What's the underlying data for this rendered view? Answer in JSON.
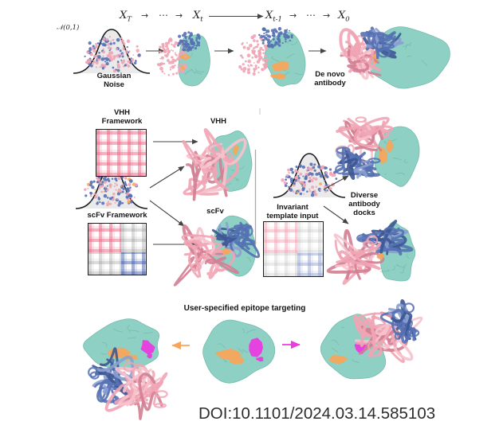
{
  "colors": {
    "teal": "#8ed0c4",
    "teal_edge": "#74bcae",
    "teal_texture": "#69b0a2",
    "pink": "#f0a4b4",
    "pink_dark": "#d27e92",
    "pink_light": "#f7c2cd",
    "blue": "#5571b4",
    "blue_dark": "#3d5694",
    "blue_light": "#8ba0d0",
    "orange": "#f7a55c",
    "magenta": "#e93be0",
    "arrow": "#444444",
    "text": "#141414"
  },
  "diffusion_row": {
    "noise_dist_label": "𝒩(0,1)",
    "states": [
      {
        "base": "X",
        "sub": "T"
      },
      {
        "base": "X",
        "sub": "t"
      },
      {
        "base": "X",
        "sub": "t-1"
      },
      {
        "base": "X",
        "sub": "0"
      }
    ],
    "ellipsis": "⋯",
    "arrow_glyph": "→",
    "gaussian_noise_label": "Gaussian Noise",
    "de_novo_label": "De novo antibody"
  },
  "frameworks": {
    "vhh_framework_label": "VHH Framework",
    "vhh_label": "VHH",
    "scfv_framework_label": "scFv Framework",
    "scfv_label": "scFv",
    "invariant_label": "Invariant template input",
    "diverse_label": "Diverse antibody docks"
  },
  "epitope": {
    "title": "User-specified epitope targeting"
  },
  "footer": {
    "doi": "DOI:10.1101/2024.03.14.585103"
  }
}
